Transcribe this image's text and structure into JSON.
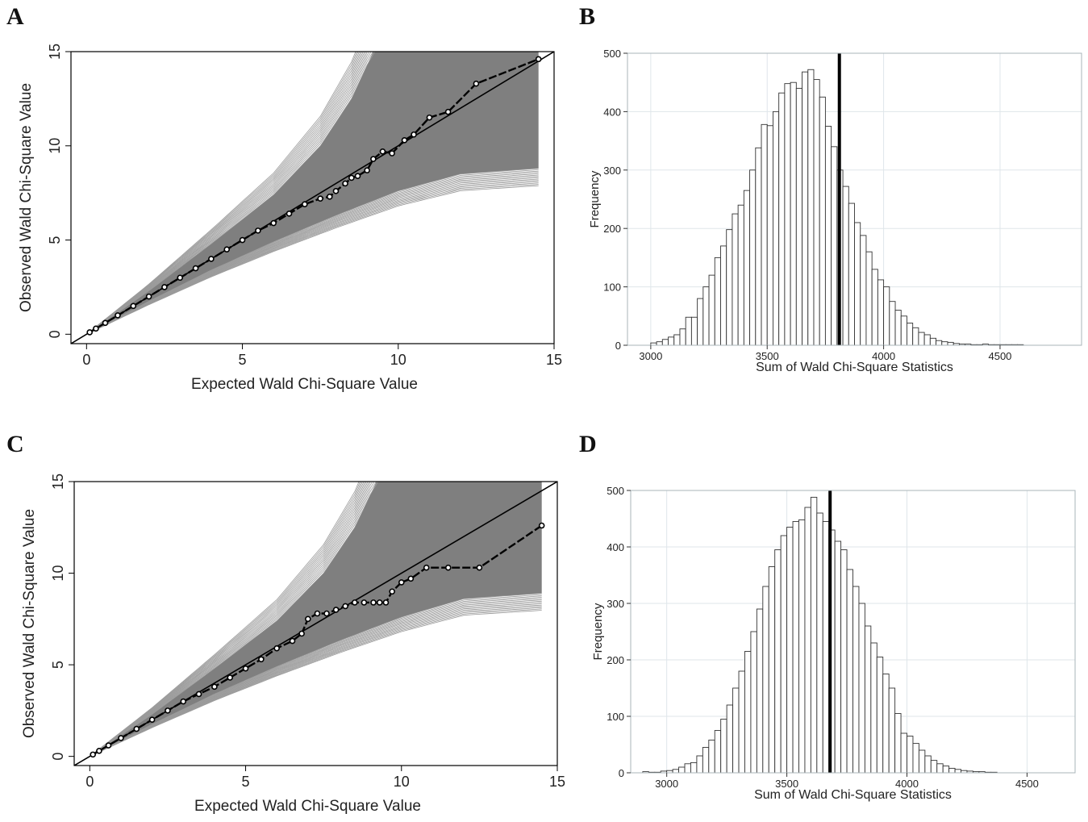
{
  "chart_data": [
    {
      "panel": "A",
      "type": "line",
      "xlabel": "Expected Wald Chi-Square Value",
      "ylabel": "Observed Wald Chi-Square Value",
      "xlim": [
        -0.5,
        15
      ],
      "ylim": [
        -0.5,
        15
      ],
      "xticks": [
        0,
        5,
        10,
        15
      ],
      "yticks": [
        0,
        5,
        10,
        15
      ],
      "grid": false,
      "envelope": {
        "color": "#7f7f7f",
        "lower": [
          [
            0,
            0
          ],
          [
            2,
            1.75
          ],
          [
            4,
            3.4
          ],
          [
            6,
            4.9
          ],
          [
            8,
            6.3
          ],
          [
            10,
            7.6
          ],
          [
            12,
            8.5
          ],
          [
            14.5,
            8.8
          ]
        ],
        "upper": [
          [
            0,
            0
          ],
          [
            2,
            2.3
          ],
          [
            4,
            4.8
          ],
          [
            6,
            7.4
          ],
          [
            7.5,
            10
          ],
          [
            8.5,
            12.5
          ],
          [
            9.2,
            15
          ],
          [
            14.5,
            15
          ]
        ]
      },
      "reference_line": {
        "x": [
          -0.5,
          15
        ],
        "y": [
          -0.5,
          15
        ]
      },
      "series": [
        {
          "x": [
            0.1,
            0.3,
            0.6,
            1.0,
            1.5,
            2.0,
            2.5,
            3.0,
            3.5,
            4.0,
            4.5,
            5.0,
            5.5,
            6.0,
            6.5,
            7.0,
            7.5,
            7.8,
            8.0,
            8.3,
            8.5,
            8.7,
            9.0,
            9.2,
            9.5,
            9.8,
            10.2,
            10.5,
            11.0,
            11.6,
            12.5,
            14.5
          ],
          "y": [
            0.1,
            0.3,
            0.6,
            1.0,
            1.5,
            2.0,
            2.5,
            3.0,
            3.5,
            4.0,
            4.5,
            5.0,
            5.5,
            5.9,
            6.4,
            6.9,
            7.2,
            7.3,
            7.6,
            8.0,
            8.3,
            8.4,
            8.7,
            9.3,
            9.7,
            9.6,
            10.3,
            10.6,
            11.5,
            11.8,
            13.3,
            14.6
          ]
        }
      ]
    },
    {
      "panel": "B",
      "type": "bar",
      "xlabel": "Sum of Wald Chi-Square Statistics",
      "ylabel": "Frequency",
      "xlim": [
        2900,
        4850
      ],
      "ylim": [
        0,
        500
      ],
      "xticks": [
        3000,
        3500,
        4000,
        4500
      ],
      "yticks": [
        0,
        100,
        200,
        300,
        400,
        500
      ],
      "grid": true,
      "bin_start": 3000,
      "bin_width": 25,
      "values": [
        4,
        6,
        10,
        14,
        18,
        28,
        48,
        48,
        80,
        100,
        120,
        150,
        170,
        198,
        225,
        240,
        265,
        300,
        338,
        378,
        376,
        400,
        432,
        448,
        450,
        440,
        468,
        472,
        455,
        425,
        375,
        340,
        300,
        272,
        243,
        210,
        188,
        160,
        130,
        112,
        100,
        75,
        60,
        50,
        38,
        30,
        22,
        18,
        12,
        8,
        6,
        5,
        3,
        2,
        2,
        1,
        1,
        2,
        1,
        1,
        1,
        1,
        1,
        1
      ],
      "marker_x": 3810
    },
    {
      "panel": "C",
      "type": "line",
      "xlabel": "Expected Wald Chi-Square Value",
      "ylabel": "Observed Wald Chi-Square Value",
      "xlim": [
        -0.5,
        15
      ],
      "ylim": [
        -0.5,
        15
      ],
      "xticks": [
        0,
        5,
        10,
        15
      ],
      "yticks": [
        0,
        5,
        10,
        15
      ],
      "grid": false,
      "envelope": {
        "color": "#7f7f7f",
        "lower": [
          [
            0,
            0
          ],
          [
            2,
            1.75
          ],
          [
            4,
            3.4
          ],
          [
            6,
            4.9
          ],
          [
            8,
            6.3
          ],
          [
            10,
            7.6
          ],
          [
            12,
            8.6
          ],
          [
            14.5,
            8.9
          ]
        ],
        "upper": [
          [
            0,
            0
          ],
          [
            2,
            2.3
          ],
          [
            4,
            4.8
          ],
          [
            6,
            7.4
          ],
          [
            7.5,
            10
          ],
          [
            8.5,
            12.5
          ],
          [
            9.2,
            15
          ],
          [
            14.5,
            15
          ]
        ]
      },
      "reference_line": {
        "x": [
          -0.5,
          15
        ],
        "y": [
          -0.5,
          15
        ]
      },
      "series": [
        {
          "x": [
            0.1,
            0.3,
            0.6,
            1.0,
            1.5,
            2.0,
            2.5,
            3.0,
            3.5,
            4.0,
            4.5,
            5.0,
            5.5,
            6.0,
            6.5,
            6.8,
            7.0,
            7.3,
            7.6,
            7.9,
            8.2,
            8.5,
            8.8,
            9.1,
            9.3,
            9.5,
            9.7,
            10.0,
            10.3,
            10.8,
            11.5,
            12.5,
            14.5
          ],
          "y": [
            0.1,
            0.3,
            0.6,
            1.0,
            1.5,
            2.0,
            2.5,
            3.0,
            3.4,
            3.8,
            4.3,
            4.8,
            5.3,
            5.9,
            6.3,
            6.7,
            7.5,
            7.8,
            7.8,
            8.0,
            8.2,
            8.4,
            8.4,
            8.4,
            8.4,
            8.4,
            9.0,
            9.5,
            9.7,
            10.3,
            10.3,
            10.3,
            12.6
          ]
        }
      ]
    },
    {
      "panel": "D",
      "type": "bar",
      "xlabel": "Sum of Wald Chi-Square Statistics",
      "ylabel": "Frequency",
      "xlim": [
        2850,
        4700
      ],
      "ylim": [
        0,
        500
      ],
      "xticks": [
        3000,
        3500,
        4000,
        4500
      ],
      "yticks": [
        0,
        100,
        200,
        300,
        400,
        500
      ],
      "grid": true,
      "bin_start": 2900,
      "bin_width": 25,
      "values": [
        2,
        1,
        1,
        3,
        4,
        6,
        10,
        16,
        18,
        30,
        45,
        58,
        75,
        95,
        120,
        150,
        180,
        215,
        250,
        290,
        330,
        365,
        395,
        420,
        435,
        445,
        448,
        470,
        488,
        460,
        445,
        430,
        410,
        395,
        360,
        330,
        300,
        260,
        230,
        205,
        175,
        150,
        105,
        70,
        65,
        52,
        40,
        30,
        22,
        16,
        12,
        8,
        6,
        4,
        3,
        2,
        2,
        1,
        1
      ],
      "marker_x": 3680
    }
  ],
  "panels": {
    "a": {
      "letter": "A"
    },
    "b": {
      "letter": "B"
    },
    "c": {
      "letter": "C"
    },
    "d": {
      "letter": "D"
    }
  }
}
